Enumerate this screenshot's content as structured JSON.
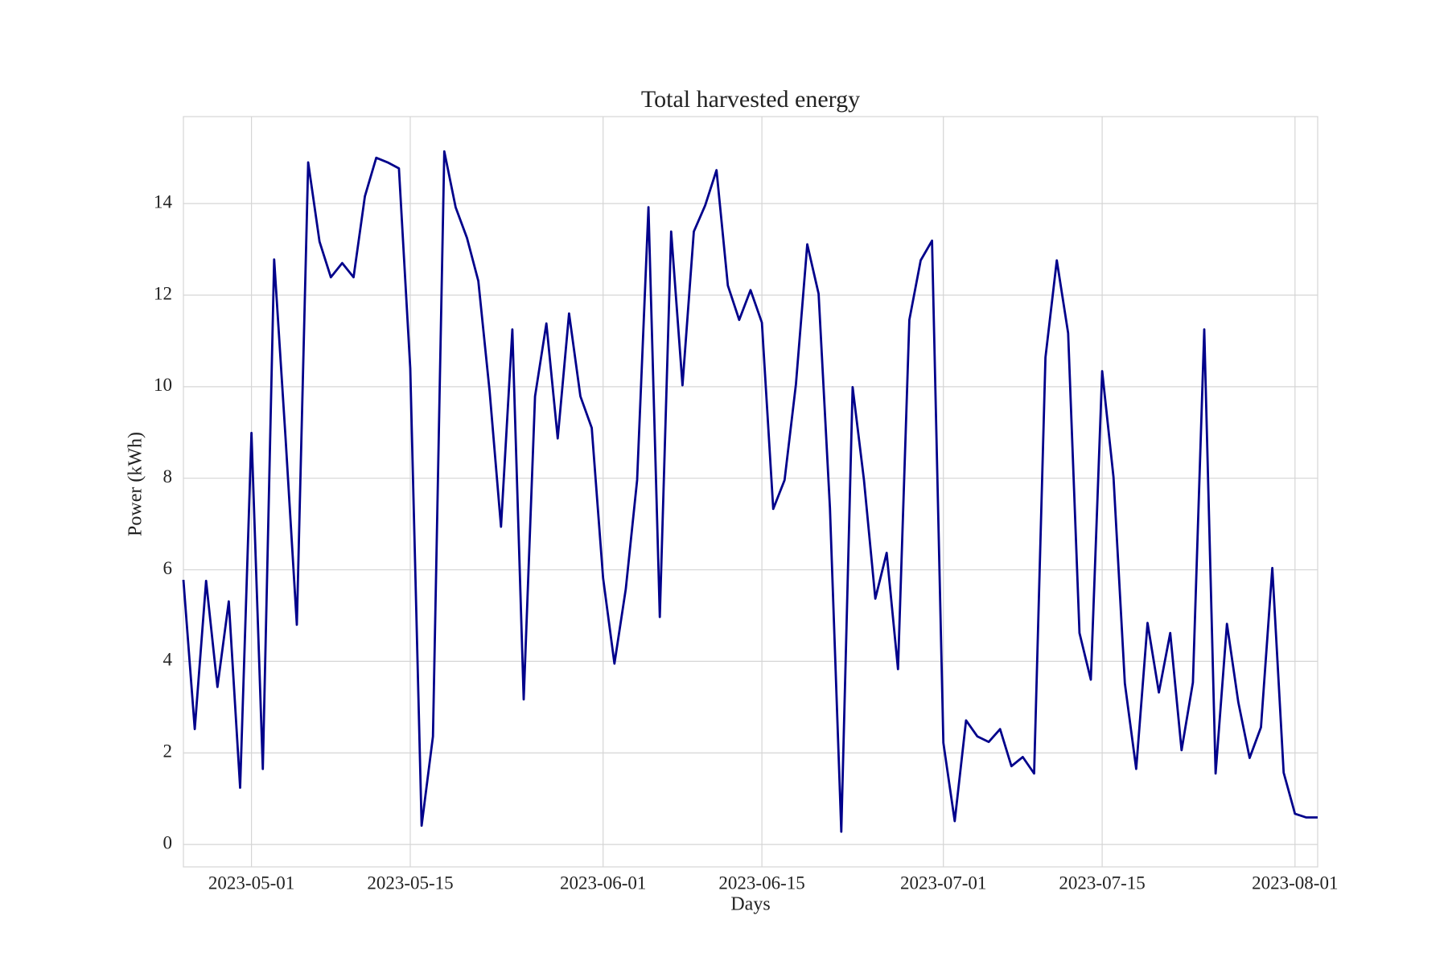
{
  "chart_data": {
    "type": "line",
    "title": "Total harvested energy",
    "xlabel": "Days",
    "ylabel": "Power (kWh)",
    "x": [
      "2023-04-25",
      "2023-04-26",
      "2023-04-27",
      "2023-04-28",
      "2023-04-29",
      "2023-04-30",
      "2023-05-01",
      "2023-05-02",
      "2023-05-03",
      "2023-05-04",
      "2023-05-05",
      "2023-05-06",
      "2023-05-07",
      "2023-05-08",
      "2023-05-09",
      "2023-05-10",
      "2023-05-11",
      "2023-05-12",
      "2023-05-13",
      "2023-05-14",
      "2023-05-15",
      "2023-05-16",
      "2023-05-17",
      "2023-05-18",
      "2023-05-19",
      "2023-05-20",
      "2023-05-21",
      "2023-05-22",
      "2023-05-23",
      "2023-05-24",
      "2023-05-25",
      "2023-05-26",
      "2023-05-27",
      "2023-05-28",
      "2023-05-29",
      "2023-05-30",
      "2023-05-31",
      "2023-06-01",
      "2023-06-02",
      "2023-06-03",
      "2023-06-04",
      "2023-06-05",
      "2023-06-06",
      "2023-06-07",
      "2023-06-08",
      "2023-06-09",
      "2023-06-10",
      "2023-06-11",
      "2023-06-12",
      "2023-06-13",
      "2023-06-14",
      "2023-06-15",
      "2023-06-16",
      "2023-06-17",
      "2023-06-18",
      "2023-06-19",
      "2023-06-20",
      "2023-06-21",
      "2023-06-22",
      "2023-06-23",
      "2023-06-24",
      "2023-06-25",
      "2023-06-26",
      "2023-06-27",
      "2023-06-28",
      "2023-06-29",
      "2023-06-30",
      "2023-07-01",
      "2023-07-02",
      "2023-07-03",
      "2023-07-04",
      "2023-07-05",
      "2023-07-06",
      "2023-07-07",
      "2023-07-08",
      "2023-07-09",
      "2023-07-10",
      "2023-07-11",
      "2023-07-12",
      "2023-07-13",
      "2023-07-14",
      "2023-07-15",
      "2023-07-16",
      "2023-07-17",
      "2023-07-18",
      "2023-07-19",
      "2023-07-20",
      "2023-07-21",
      "2023-07-22",
      "2023-07-23",
      "2023-07-24",
      "2023-07-25",
      "2023-07-26",
      "2023-07-27",
      "2023-07-28",
      "2023-07-29",
      "2023-07-30",
      "2023-07-31",
      "2023-08-01",
      "2023-08-02",
      "2023-08-03"
    ],
    "series": [
      {
        "color": "#00008b",
        "values": [
          5.78,
          2.52,
          5.76,
          3.44,
          5.31,
          1.24,
          8.99,
          1.65,
          12.78,
          8.9,
          4.8,
          14.9,
          13.17,
          12.39,
          12.7,
          12.39,
          14.16,
          15.0,
          14.9,
          14.77,
          10.4,
          0.41,
          2.36,
          15.14,
          13.92,
          13.25,
          12.31,
          9.89,
          6.94,
          11.25,
          3.17,
          9.79,
          11.38,
          8.87,
          11.6,
          9.79,
          9.1,
          5.82,
          3.95,
          5.58,
          7.96,
          13.92,
          4.97,
          13.39,
          10.03,
          13.39,
          13.96,
          14.73,
          12.21,
          11.46,
          12.11,
          11.4,
          7.33,
          7.96,
          10.05,
          13.11,
          12.03,
          7.35,
          0.28,
          9.99,
          7.96,
          5.37,
          6.37,
          3.83,
          11.46,
          12.76,
          13.19,
          2.22,
          0.51,
          2.71,
          2.36,
          2.24,
          2.52,
          1.71,
          1.91,
          1.55,
          10.64,
          12.76,
          11.17,
          4.62,
          3.6,
          10.34,
          8.02,
          3.52,
          1.65,
          4.84,
          3.32,
          4.62,
          2.06,
          3.54,
          11.25,
          1.55,
          4.82,
          3.11,
          1.89,
          2.56,
          6.04,
          1.57,
          0.67,
          0.59,
          0.59
        ]
      }
    ],
    "xlim": [
      "2023-04-25",
      "2023-08-03"
    ],
    "xticks": [
      "2023-05-01",
      "2023-05-15",
      "2023-06-01",
      "2023-06-15",
      "2023-07-01",
      "2023-07-15",
      "2023-08-01"
    ],
    "ylim": [
      -0.49,
      15.9
    ],
    "yticks": [
      0,
      2,
      4,
      6,
      8,
      10,
      12,
      14
    ],
    "grid": true
  }
}
